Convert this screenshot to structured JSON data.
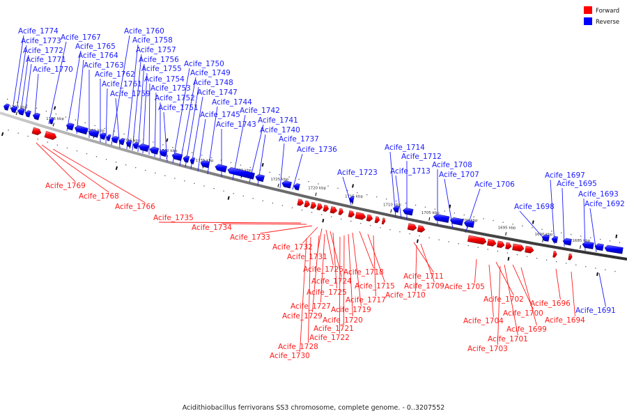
{
  "caption": "Acidithiobacillus ferrivorans SS3 chromosome, complete genome. - 0..3207552",
  "legend": [
    {
      "label": "Forward",
      "color": "#ff0000"
    },
    {
      "label": "Reverse",
      "color": "#0000ff"
    }
  ],
  "ticks": [
    "1760 kbp",
    "1755 kbp",
    "1750 kbp",
    "1745 kbp",
    "1740 kbp",
    "1735 kbp",
    "1730 kbp",
    "1725 kbp",
    "1720 kbp",
    "1715 kbp",
    "1710 kbp",
    "1705 kbp",
    "1700 kbp",
    "1695 kbp",
    "1690 kbp",
    "1685 kbp"
  ],
  "reverse_genes": [
    "Acife_1774",
    "Acife_1773",
    "Acife_1772",
    "Acife_1771",
    "Acife_1770",
    "Acife_1767",
    "Acife_1765",
    "Acife_1764",
    "Acife_1763",
    "Acife_1762",
    "Acife_1761",
    "Acife_1760",
    "Acife_1759",
    "Acife_1758",
    "Acife_1757",
    "Acife_1756",
    "Acife_1755",
    "Acife_1754",
    "Acife_1753",
    "Acife_1752",
    "Acife_1751",
    "Acife_1750",
    "Acife_1749",
    "Acife_1748",
    "Acife_1747",
    "Acife_1745",
    "Acife_1744",
    "Acife_1743",
    "Acife_1742",
    "Acife_1741",
    "Acife_1740",
    "Acife_1737",
    "Acife_1736",
    "Acife_1723",
    "Acife_1714",
    "Acife_1713",
    "Acife_1712",
    "Acife_1708",
    "Acife_1707",
    "Acife_1706",
    "Acife_1698",
    "Acife_1697",
    "Acife_1695",
    "Acife_1693",
    "Acife_1692",
    "Acife_1691"
  ],
  "forward_genes": [
    "Acife_1769",
    "Acife_1768",
    "Acife_1766",
    "Acife_1735",
    "Acife_1734",
    "Acife_1733",
    "Acife_1732",
    "Acife_1731",
    "Acife_1726",
    "Acife_1724",
    "Acife_1725",
    "Acife_1727",
    "Acife_1729",
    "Acife_1728",
    "Acife_1730",
    "Acife_1718",
    "Acife_1715",
    "Acife_1717",
    "Acife_1719",
    "Acife_1720",
    "Acife_1721",
    "Acife_1722",
    "Acife_1711",
    "Acife_1709",
    "Acife_1710",
    "Acife_1705",
    "Acife_1702",
    "Acife_1704",
    "Acife_1700",
    "Acife_1701",
    "Acife_1699",
    "Acife_1703",
    "Acife_1696",
    "Acife_1694"
  ]
}
